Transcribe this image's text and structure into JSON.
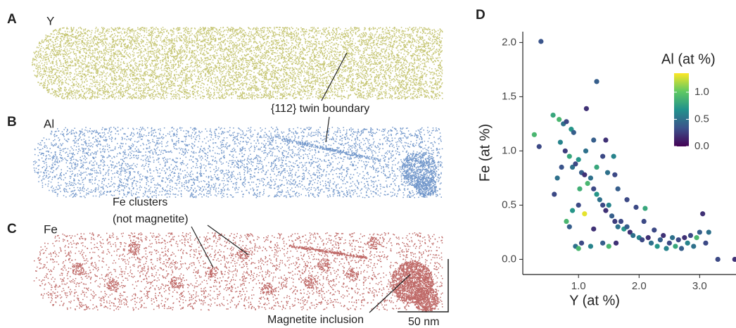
{
  "atom_maps": {
    "panels": [
      {
        "label": "A",
        "element": "Y",
        "color": "#bcbc5c"
      },
      {
        "label": "B",
        "element": "Al",
        "color": "#5b86c2"
      },
      {
        "label": "C",
        "element": "Fe",
        "color": "#b4504e"
      }
    ],
    "annotations": {
      "twin_boundary": "{112} twin boundary",
      "fe_clusters": [
        "Fe clusters",
        "(not magnetite)"
      ],
      "magnetite": "Magnetite inclusion",
      "scale_bar": "50 nm"
    }
  },
  "chart_data": {
    "type": "scatter",
    "panel_label": "D",
    "x_label": "Y (at %)",
    "y_label": "Fe (at %)",
    "xlim": [
      0.08,
      3.6
    ],
    "ylim": [
      -0.14,
      2.1
    ],
    "xticks": [
      {
        "value": 1,
        "label": "1.0"
      },
      {
        "value": 2,
        "label": "2.0"
      },
      {
        "value": 3,
        "label": "3.0"
      }
    ],
    "yticks": [
      {
        "value": 0,
        "label": "0.0"
      },
      {
        "value": 0.5,
        "label": "0.5"
      },
      {
        "value": 1,
        "label": "1.0"
      },
      {
        "value": 1.5,
        "label": "1.5"
      },
      {
        "value": 2,
        "label": "2.0"
      }
    ],
    "color_label": "Al (at %)",
    "clim": [
      0,
      1.35
    ],
    "cticks": [
      {
        "value": 0,
        "label": "0.0"
      },
      {
        "value": 0.5,
        "label": "0.5"
      },
      {
        "value": 1,
        "label": "1.0"
      }
    ],
    "colormap": [
      "#440154",
      "#3b528b",
      "#21918c",
      "#5ec962",
      "#fde725"
    ],
    "x": [
      0.38,
      1.3,
      0.27,
      0.35,
      0.58,
      0.68,
      0.75,
      0.8,
      1.13,
      0.88,
      0.92,
      0.6,
      0.7,
      0.78,
      0.85,
      0.9,
      0.95,
      1.0,
      1.05,
      1.1,
      1.15,
      1.2,
      1.25,
      1.3,
      1.35,
      1.4,
      1.45,
      1.5,
      1.55,
      1.6,
      1.65,
      1.7,
      1.75,
      1.8,
      1.85,
      1.9,
      1.95,
      2.0,
      2.05,
      2.1,
      2.15,
      2.2,
      2.25,
      2.3,
      2.35,
      2.4,
      2.45,
      2.5,
      2.55,
      2.6,
      2.65,
      2.7,
      2.75,
      2.8,
      2.85,
      2.9,
      2.95,
      3.0,
      3.05,
      3.1,
      3.15,
      3.3,
      3.58,
      1.1,
      0.95,
      1.0,
      1.05,
      1.2,
      1.4,
      1.5,
      1.62,
      0.8,
      0.85,
      0.9,
      1.0,
      1.25,
      1.4,
      1.45,
      1.48,
      1.6,
      1.65,
      1.8,
      1.25,
      1.3,
      0.72,
      0.65,
      1.12,
      2.08,
      1.58,
      1.02
    ],
    "y": [
      2.01,
      1.64,
      1.15,
      1.04,
      1.33,
      1.29,
      1.25,
      1.27,
      1.39,
      1.2,
      1.17,
      0.6,
      1.08,
      1.0,
      0.95,
      0.85,
      0.88,
      0.92,
      0.8,
      0.78,
      0.7,
      0.75,
      0.65,
      0.6,
      0.55,
      0.5,
      0.45,
      0.5,
      0.4,
      0.35,
      0.3,
      0.35,
      0.28,
      0.3,
      0.25,
      0.22,
      0.48,
      0.2,
      0.18,
      0.47,
      0.2,
      0.15,
      0.27,
      0.12,
      0.18,
      0.22,
      0.1,
      0.15,
      0.2,
      0.12,
      0.18,
      0.1,
      0.2,
      0.15,
      0.22,
      0.12,
      0.2,
      0.25,
      0.42,
      0.15,
      0.25,
      0.0,
      0.0,
      0.42,
      0.12,
      0.1,
      0.15,
      0.12,
      0.15,
      0.12,
      0.15,
      0.35,
      0.3,
      0.45,
      0.5,
      1.1,
      0.95,
      1.1,
      0.8,
      0.78,
      0.65,
      0.55,
      0.28,
      0.85,
      0.85,
      0.75,
      1.0,
      0.35,
      0.95,
      0.65
    ],
    "color_values": [
      0.35,
      0.4,
      0.9,
      0.3,
      0.8,
      0.9,
      0.5,
      0.3,
      0.2,
      0.7,
      0.4,
      0.3,
      0.6,
      0.25,
      0.8,
      0.5,
      0.3,
      0.7,
      0.4,
      0.2,
      0.9,
      0.5,
      0.3,
      0.7,
      0.5,
      0.3,
      0.2,
      0.6,
      0.4,
      0.25,
      0.5,
      0.3,
      0.7,
      0.4,
      0.2,
      0.5,
      0.3,
      0.6,
      0.3,
      0.8,
      0.2,
      0.5,
      0.3,
      0.7,
      0.4,
      0.2,
      0.6,
      0.3,
      0.5,
      0.8,
      0.3,
      0.4,
      0.2,
      0.6,
      0.3,
      0.5,
      0.9,
      0.4,
      0.2,
      0.3,
      0.5,
      0.3,
      0.2,
      1.3,
      0.5,
      0.9,
      0.3,
      0.6,
      0.4,
      0.9,
      0.2,
      0.9,
      0.4,
      0.7,
      0.3,
      0.4,
      0.3,
      0.2,
      0.5,
      0.3,
      0.4,
      0.3,
      0.2,
      0.8,
      0.35,
      0.5,
      0.5,
      0.3,
      0.6,
      0.85
    ]
  }
}
